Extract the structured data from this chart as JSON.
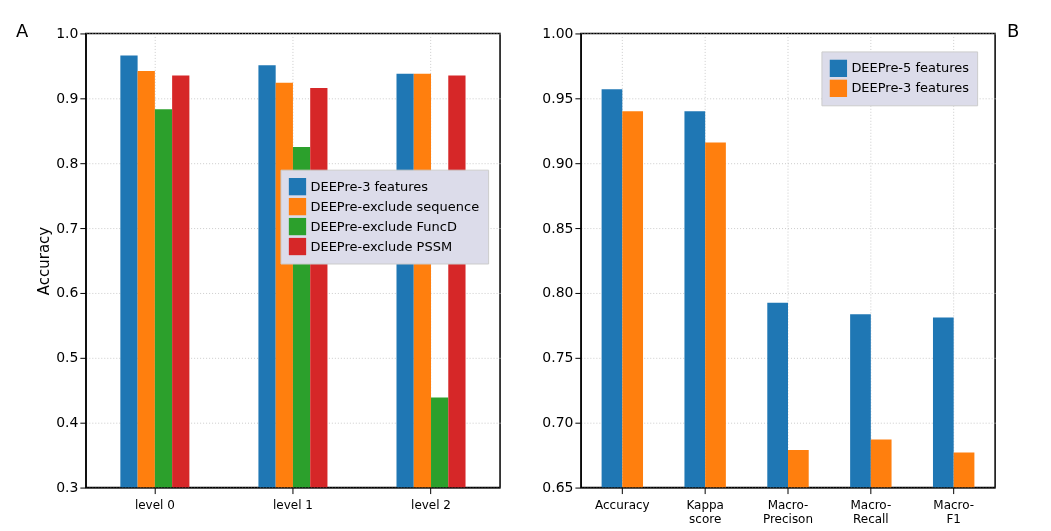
{
  "chart_data": [
    {
      "type": "bar",
      "ylabel": "Accuracy",
      "categories": [
        "level 0",
        "level 1",
        "level 2"
      ],
      "series": [
        {
          "name": "DEEPre-3 features",
          "color": "#1f77b4",
          "values": [
            0.966,
            0.951,
            0.938
          ]
        },
        {
          "name": "DEEPre-exclude sequence",
          "color": "#ff7f0e",
          "values": [
            0.942,
            0.924,
            0.938
          ]
        },
        {
          "name": "DEEPre-exclude FuncD",
          "color": "#2ca02c",
          "values": [
            0.883,
            0.825,
            0.439
          ]
        },
        {
          "name": "DEEPre-exclude PSSM",
          "color": "#d62728",
          "values": [
            0.935,
            0.916,
            0.935
          ]
        }
      ],
      "ylim": [
        0.3,
        1.0
      ],
      "yticks": [
        {
          "value": 0.3,
          "label": "0.3"
        },
        {
          "value": 0.4,
          "label": "0.4"
        },
        {
          "value": 0.5,
          "label": "0.5"
        },
        {
          "value": 0.6,
          "label": "0.6"
        },
        {
          "value": 0.7,
          "label": "0.7"
        },
        {
          "value": 0.8,
          "label": "0.8"
        },
        {
          "value": 0.9,
          "label": "0.9"
        },
        {
          "value": 1.0,
          "label": "1.0"
        }
      ],
      "grid": true,
      "legend": "right",
      "annotations": [
        "A"
      ]
    },
    {
      "type": "bar",
      "categories": [
        "Accuracy",
        "Kappa\nscore",
        "Macro-\nPrecison",
        "Macro-\nRecall",
        "Macro-\nF1"
      ],
      "series": [
        {
          "name": "DEEPre-5 features",
          "color": "#1f77b4",
          "values": [
            0.957,
            0.94,
            0.7925,
            0.7835,
            0.781
          ]
        },
        {
          "name": "DEEPre-3 features",
          "color": "#ff7f0e",
          "values": [
            0.94,
            0.916,
            0.679,
            0.687,
            0.677
          ]
        }
      ],
      "ylim": [
        0.65,
        1.0
      ],
      "yticks": [
        {
          "value": 0.65,
          "label": "0.65"
        },
        {
          "value": 0.7,
          "label": "0.70"
        },
        {
          "value": 0.75,
          "label": "0.75"
        },
        {
          "value": 0.8,
          "label": "0.80"
        },
        {
          "value": 0.85,
          "label": "0.85"
        },
        {
          "value": 0.9,
          "label": "0.90"
        },
        {
          "value": 0.95,
          "label": "0.95"
        },
        {
          "value": 1.0,
          "label": "1.00"
        }
      ],
      "grid": true,
      "legend": "top right",
      "annotations": [
        "B"
      ]
    }
  ]
}
